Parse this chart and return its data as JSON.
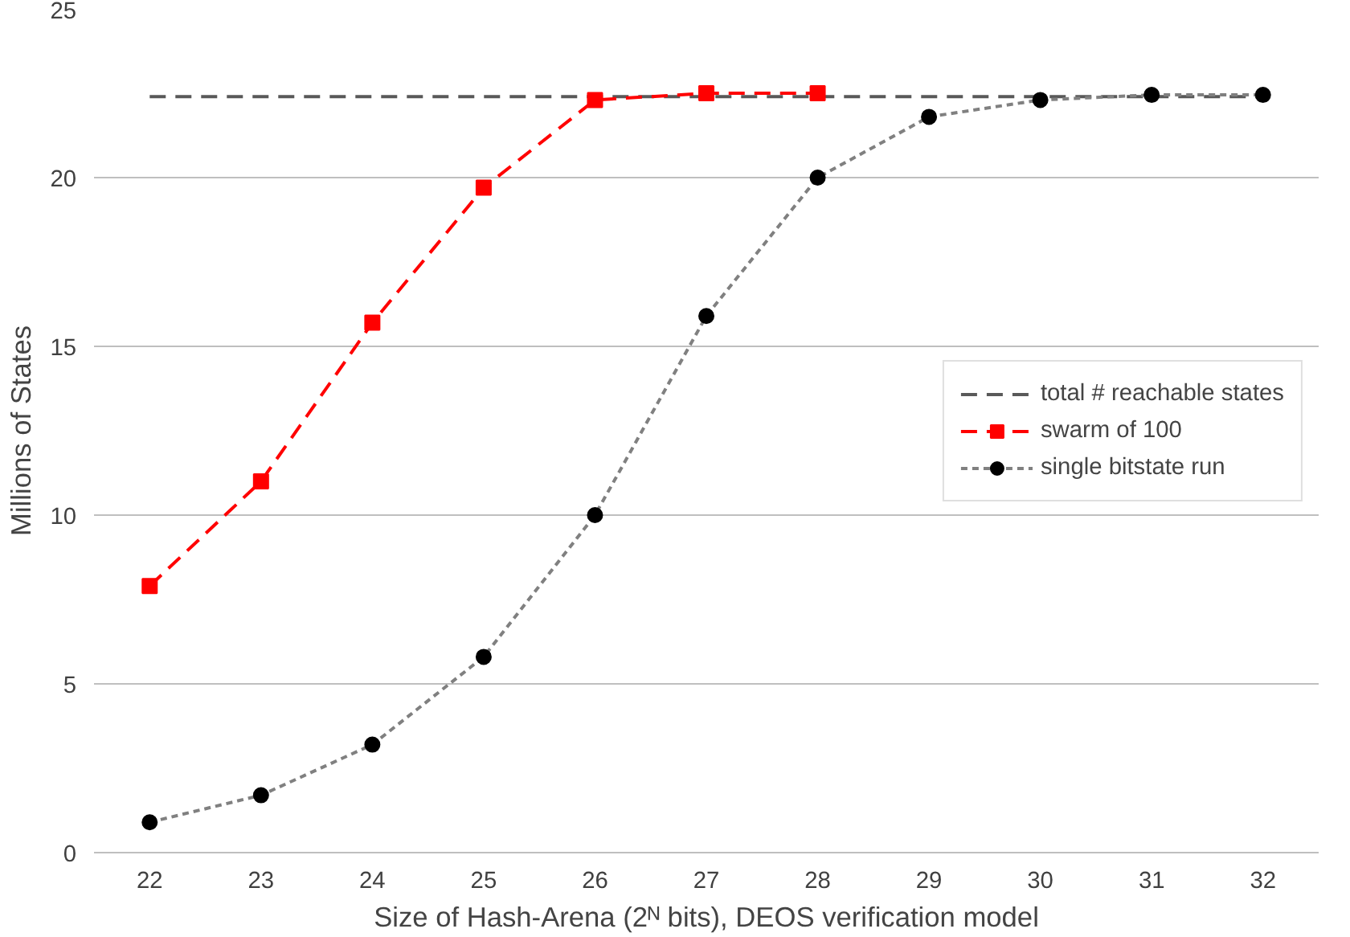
{
  "chart_data": {
    "type": "line",
    "xlabel": "Size of Hash-Arena (2ᴺ bits), DEOS verification model",
    "ylabel": "Millions of States",
    "x": [
      22,
      23,
      24,
      25,
      26,
      27,
      28,
      29,
      30,
      31,
      32
    ],
    "xlim": [
      21.5,
      32.5
    ],
    "xticks": [
      22,
      23,
      24,
      25,
      26,
      27,
      28,
      29,
      30,
      31,
      32
    ],
    "ylim": [
      0,
      25
    ],
    "yticks": [
      0,
      5,
      10,
      15,
      20,
      25
    ],
    "grid": "y",
    "legend": "right",
    "series": [
      {
        "name": "total # reachable states",
        "color": "#595959",
        "line_style": "dashed",
        "marker": "none",
        "x": [
          22,
          32
        ],
        "values": [
          22.4,
          22.4
        ]
      },
      {
        "name": "swarm of 100",
        "color": "#ff0000",
        "line_style": "dashed",
        "marker": "square",
        "x": [
          22,
          23,
          24,
          25,
          26,
          27,
          28
        ],
        "values": [
          7.9,
          11.0,
          15.7,
          19.7,
          22.3,
          22.5,
          22.5
        ]
      },
      {
        "name": "single bitstate run",
        "color": "#808080",
        "line_style": "dotted",
        "marker": "circle",
        "values": [
          0.9,
          1.7,
          3.2,
          5.8,
          10.0,
          15.9,
          20.0,
          21.8,
          22.3,
          22.45,
          22.45
        ]
      }
    ]
  }
}
